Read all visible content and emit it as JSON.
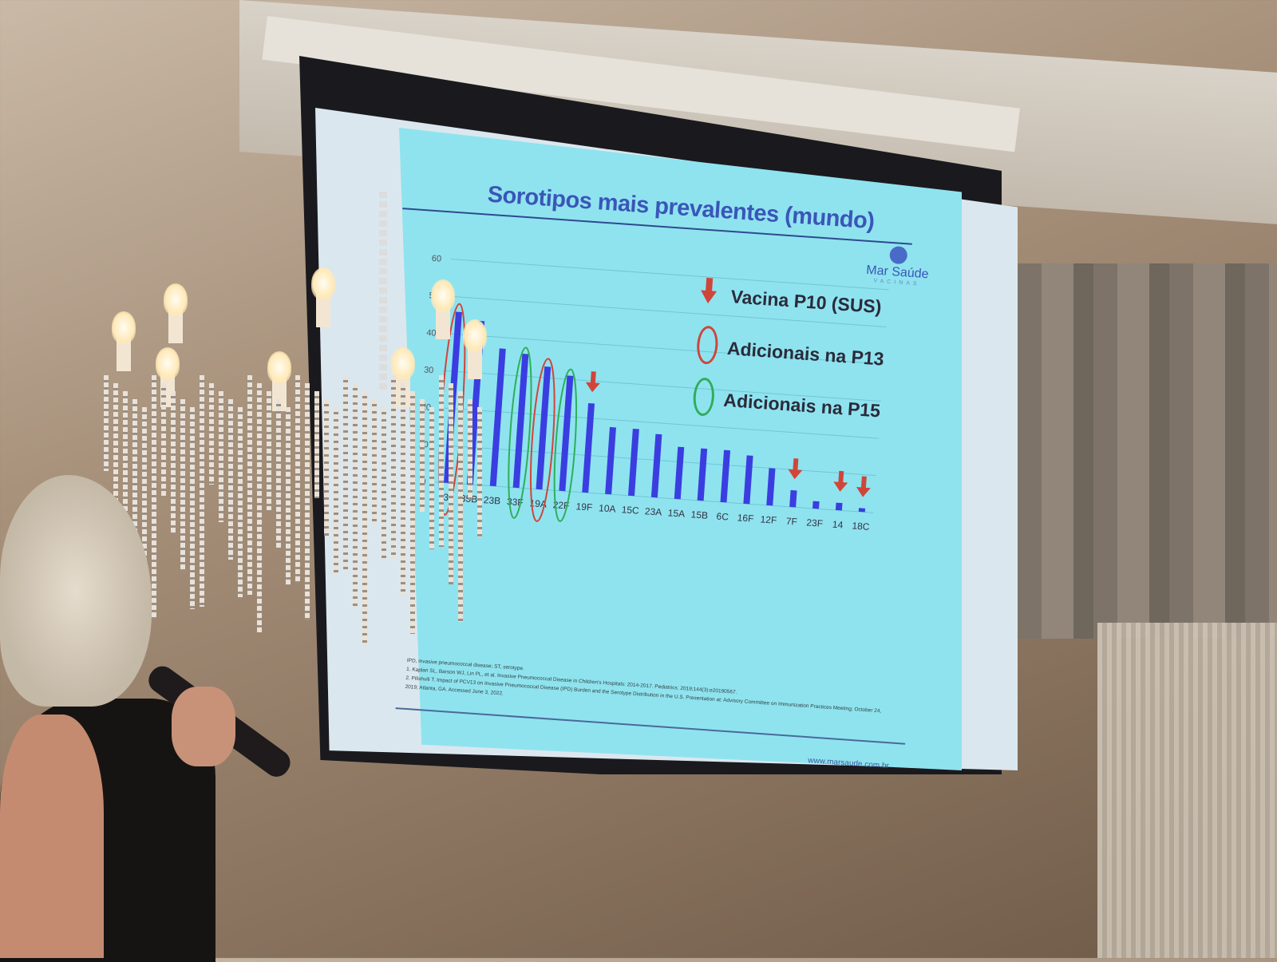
{
  "slide": {
    "title": "Sorotipos mais prevalentes (mundo)",
    "logo": {
      "name": "Mar Saúde",
      "subtitle": "VACINAS"
    },
    "legend": [
      {
        "label": "Vacina P10 (SUS)",
        "symbol": "red-arrow",
        "color": "#d0453a"
      },
      {
        "label": "Adicionais na P13",
        "symbol": "red-oval",
        "color": "#d0453a"
      },
      {
        "label": "Adicionais na P15",
        "symbol": "green-oval",
        "color": "#2fae5a"
      }
    ],
    "footnotes": [
      "IPD, invasive pneumococcal disease; ST, serotype.",
      "1. Kaplan SL, Barson WJ, Lin PL, et al. Invasive Pneumococcal Disease in Children's Hospitals: 2014-2017. Pediatrics. 2019;144(3):e20190567.",
      "2. Pilishvili T. Impact of PCV13 on Invasive Pneumococcal Disease (IPD) Burden and the Serotype Distribution in the U.S. Presentation at: Advisory Committee on Immunization Practices Meeting; October 24, 2019; Atlanta, GA. Accessed June 3, 2022."
    ],
    "website": "www.marsaude.com.br"
  },
  "chart_data": {
    "type": "bar",
    "categories": [
      "3",
      "35B",
      "23B",
      "33F",
      "19A",
      "22F",
      "19F",
      "10A",
      "15C",
      "23A",
      "15A",
      "15B",
      "6C",
      "16F",
      "12F",
      "7F",
      "23F",
      "14",
      "18C"
    ],
    "values": [
      46,
      44,
      37,
      36,
      33,
      31,
      24,
      18,
      18,
      17,
      14,
      14,
      14,
      13,
      10,
      4.5,
      2,
      2,
      1
    ],
    "ylim": [
      0,
      60
    ],
    "yticks": [
      0,
      10,
      20,
      30,
      40,
      50,
      60
    ],
    "grid": true,
    "bar_color": "#3a3ee0",
    "p10_arrows": [
      "19F",
      "7F",
      "14",
      "18C"
    ],
    "p13_circled": [
      "3",
      "19A"
    ],
    "p15_circled": [
      "33F",
      "22F"
    ],
    "legend_placement": "top-right"
  }
}
